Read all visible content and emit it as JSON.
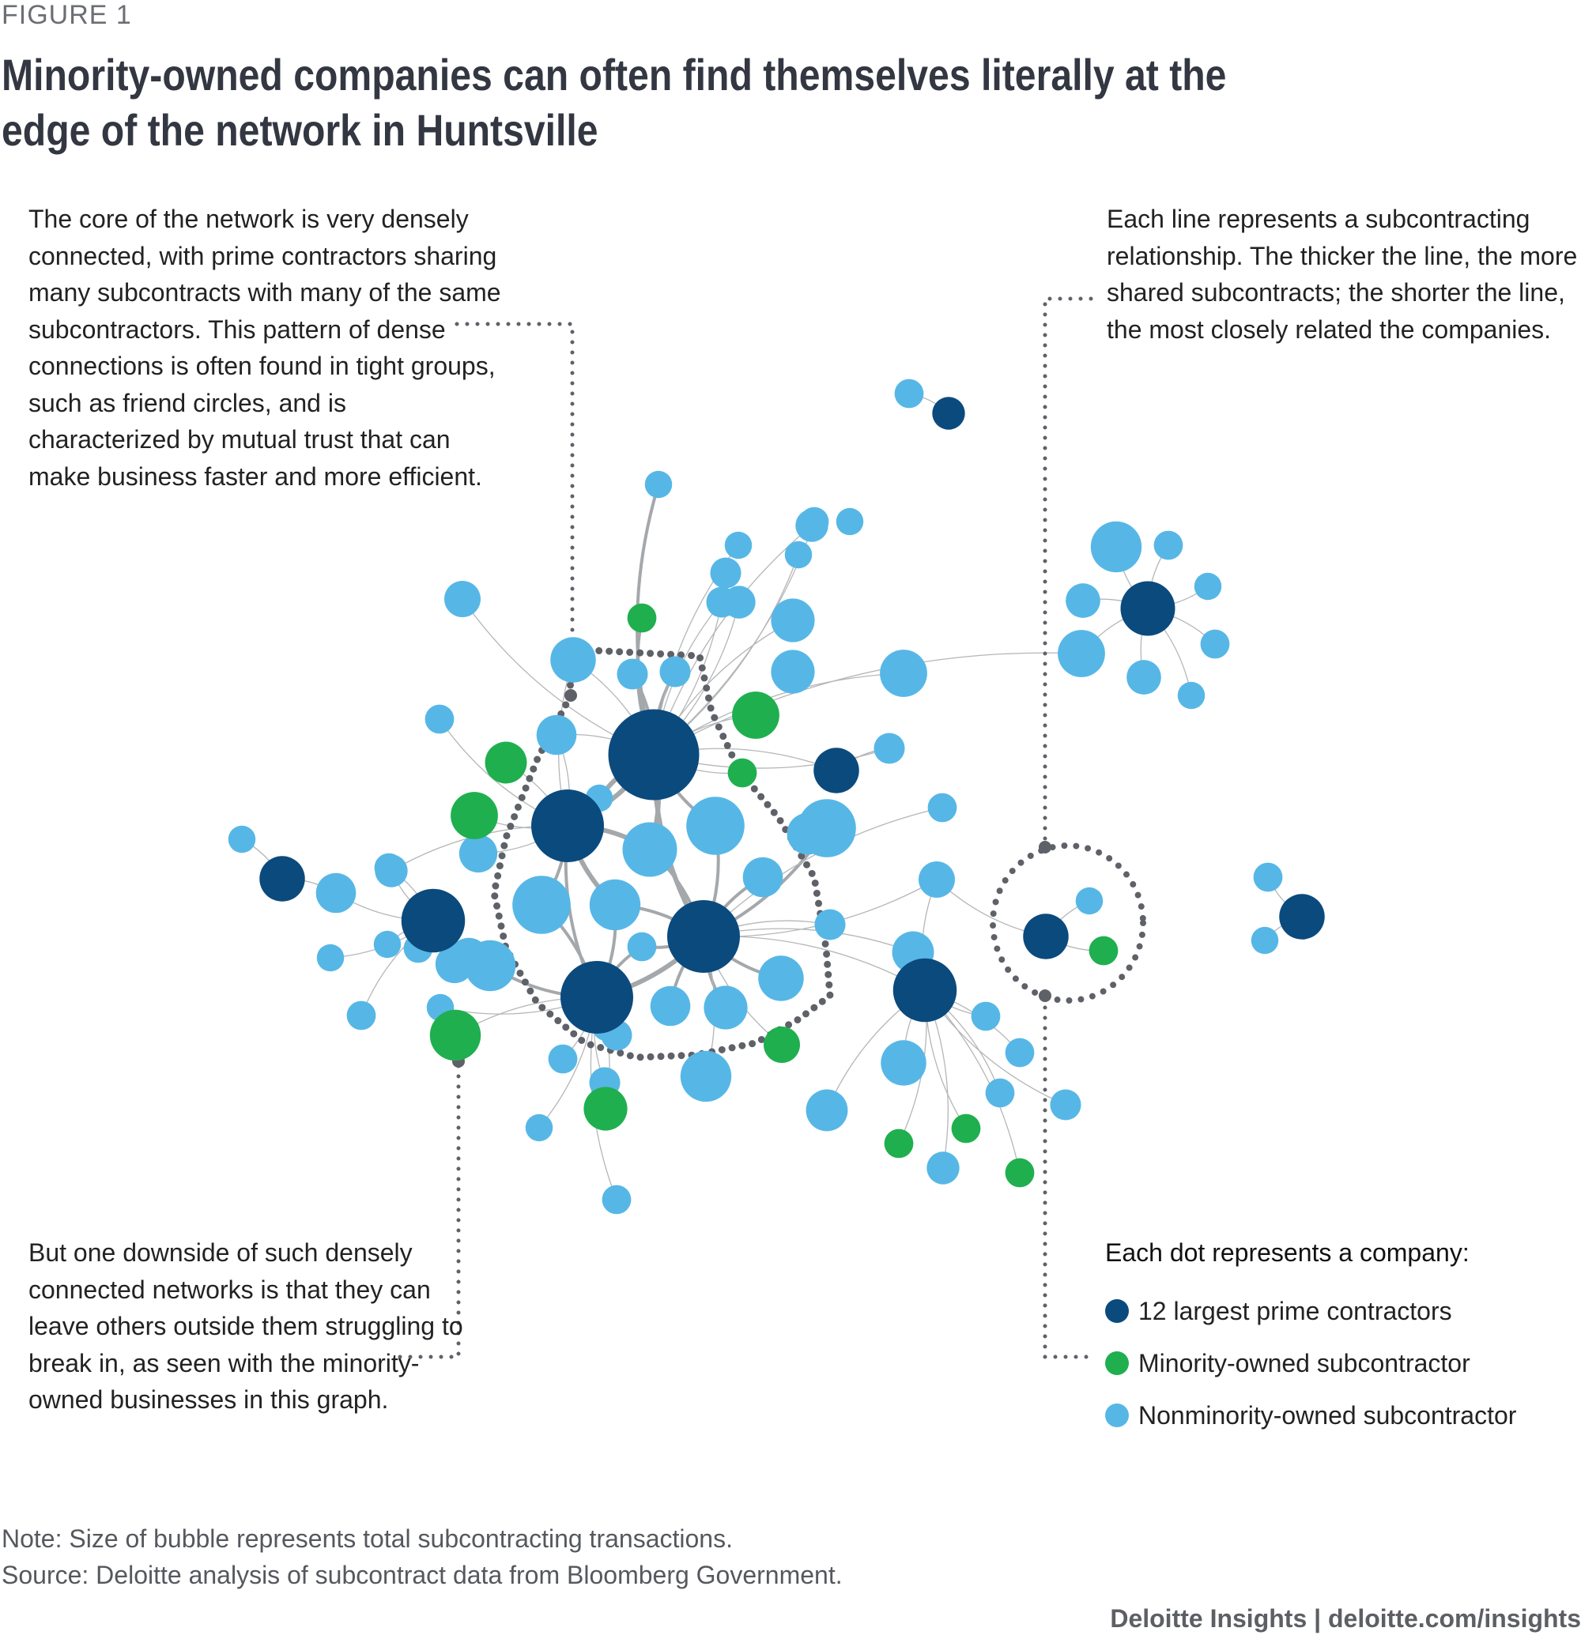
{
  "figure_label": "FIGURE 1",
  "title": "Minority-owned companies can often find themselves literally at the edge of the network in Huntsville",
  "annotations": {
    "core": "The core of the network is very densely connected, with prime contractors sharing many subcontracts with many of the same subcontractors. This pattern of dense connections is often found in tight groups, such as friend circles, and is characterized by mutual trust that can make business faster and more efficient.",
    "lines": "Each line represents a subcontracting relationship. The thicker the line, the more shared subcontracts; the shorter the line, the most closely related the companies.",
    "downside": "But one downside of such densely connected networks is that they can leave others outside them struggling to break in, as seen with the minority-owned businesses in this graph."
  },
  "legend": {
    "title": "Each dot represents a company:",
    "items": [
      {
        "label": "12 largest prime contractors",
        "type": "prime",
        "color": "#0b4a7d"
      },
      {
        "label": "Minority-owned subcontractor",
        "type": "minority",
        "color": "#1faf4f"
      },
      {
        "label": "Nonminority-owned subcontractor",
        "type": "nonminority",
        "color": "#56b7e6"
      }
    ]
  },
  "colors": {
    "prime": "#0b4a7d",
    "minority": "#1faf4f",
    "nonminority": "#56b7e6",
    "edge": "#a5a8ab",
    "callout": "#5f6168"
  },
  "note": "Note: Size of bubble represents total subcontracting transactions.",
  "source": "Source: Deloitte analysis of subcontract data from Bloomberg Government.",
  "footer": "Deloitte Insights | deloitte.com/insights",
  "network": {
    "nodes": [
      {
        "id": "P1",
        "type": "prime",
        "size": 5
      },
      {
        "id": "P2",
        "type": "prime",
        "size": 4
      },
      {
        "id": "P3",
        "type": "prime",
        "size": 4
      },
      {
        "id": "P4",
        "type": "prime",
        "size": 4
      },
      {
        "id": "P5",
        "type": "prime",
        "size": 3.5
      },
      {
        "id": "P6",
        "type": "prime",
        "size": 3.5
      },
      {
        "id": "P7",
        "type": "prime",
        "size": 3
      },
      {
        "id": "P8",
        "type": "prime",
        "size": 2.5
      },
      {
        "id": "P9",
        "type": "prime",
        "size": 2.5
      },
      {
        "id": "P10",
        "type": "prime",
        "size": 2.5
      },
      {
        "id": "P11",
        "type": "prime",
        "size": 1.8
      },
      {
        "id": "P12",
        "type": "prime",
        "size": 2.5
      },
      {
        "id": "S1",
        "type": "nonminority",
        "size": 2
      },
      {
        "id": "S2",
        "type": "nonminority",
        "size": 1.7
      },
      {
        "id": "S3",
        "type": "nonminority",
        "size": 1.5
      },
      {
        "id": "S4",
        "type": "nonminority",
        "size": 1.5
      },
      {
        "id": "S5",
        "type": "nonminority",
        "size": 1.7
      },
      {
        "id": "S6",
        "type": "nonminority",
        "size": 2.4
      },
      {
        "id": "S7",
        "type": "nonminority",
        "size": 1.8
      },
      {
        "id": "S8",
        "type": "nonminority",
        "size": 1.8
      },
      {
        "id": "S9",
        "type": "nonminority",
        "size": 1.6
      },
      {
        "id": "S10",
        "type": "nonminority",
        "size": 1.5
      },
      {
        "id": "S11",
        "type": "nonminority",
        "size": 2.1
      },
      {
        "id": "S12",
        "type": "nonminority",
        "size": 2.2
      },
      {
        "id": "S13",
        "type": "nonminority",
        "size": 2.1
      },
      {
        "id": "S14",
        "type": "nonminority",
        "size": 1.8
      },
      {
        "id": "S15",
        "type": "nonminority",
        "size": 1.5
      },
      {
        "id": "S16",
        "type": "nonminority",
        "size": 3
      },
      {
        "id": "S17",
        "type": "nonminority",
        "size": 3.2
      },
      {
        "id": "S18",
        "type": "nonminority",
        "size": 3.2
      },
      {
        "id": "S19",
        "type": "nonminority",
        "size": 2.8
      },
      {
        "id": "S20",
        "type": "nonminority",
        "size": 2.2
      },
      {
        "id": "S21",
        "type": "nonminority",
        "size": 1.6
      },
      {
        "id": "S22",
        "type": "nonminority",
        "size": 2.8
      },
      {
        "id": "S23",
        "type": "nonminority",
        "size": 2.2
      },
      {
        "id": "S24",
        "type": "nonminority",
        "size": 2.4
      },
      {
        "id": "S25",
        "type": "nonminority",
        "size": 2.8
      },
      {
        "id": "S26",
        "type": "nonminority",
        "size": 2.5
      },
      {
        "id": "S27",
        "type": "nonminority",
        "size": 2.3
      },
      {
        "id": "S28",
        "type": "nonminority",
        "size": 2.6
      },
      {
        "id": "S29",
        "type": "nonminority",
        "size": 1.7
      },
      {
        "id": "S30",
        "type": "nonminority",
        "size": 2
      },
      {
        "id": "S31",
        "type": "nonminority",
        "size": 1.7
      },
      {
        "id": "S32",
        "type": "nonminority",
        "size": 1.6
      },
      {
        "id": "S33",
        "type": "nonminority",
        "size": 2.3
      },
      {
        "id": "S34",
        "type": "nonminority",
        "size": 2.6
      },
      {
        "id": "S35",
        "type": "nonminority",
        "size": 2.8
      },
      {
        "id": "S36",
        "type": "nonminority",
        "size": 1.9
      },
      {
        "id": "S37",
        "type": "nonminority",
        "size": 1.6
      },
      {
        "id": "S38",
        "type": "nonminority",
        "size": 1.5
      },
      {
        "id": "S39",
        "type": "nonminority",
        "size": 1.6
      },
      {
        "id": "S40",
        "type": "nonminority",
        "size": 1.9
      },
      {
        "id": "S41",
        "type": "nonminority",
        "size": 1.5
      },
      {
        "id": "S42",
        "type": "nonminority",
        "size": 1.6
      },
      {
        "id": "S43",
        "type": "nonminority",
        "size": 1.5
      },
      {
        "id": "S44",
        "type": "nonminority",
        "size": 1.6
      },
      {
        "id": "S45",
        "type": "nonminority",
        "size": 2.5
      },
      {
        "id": "S46",
        "type": "nonminority",
        "size": 3.2
      },
      {
        "id": "S47",
        "type": "nonminority",
        "size": 2.4
      },
      {
        "id": "S48",
        "type": "nonminority",
        "size": 1.7
      },
      {
        "id": "S49",
        "type": "nonminority",
        "size": 1.7
      },
      {
        "id": "S50",
        "type": "nonminority",
        "size": 1.7
      },
      {
        "id": "S51",
        "type": "nonminority",
        "size": 1.7
      },
      {
        "id": "S52",
        "type": "nonminority",
        "size": 1.7
      },
      {
        "id": "S53",
        "type": "nonminority",
        "size": 1.6
      },
      {
        "id": "S54",
        "type": "nonminority",
        "size": 1.6
      },
      {
        "id": "S55",
        "type": "nonminority",
        "size": 1.6
      },
      {
        "id": "S56",
        "type": "nonminority",
        "size": 1.6
      },
      {
        "id": "S57",
        "type": "nonminority",
        "size": 2.3
      },
      {
        "id": "S58",
        "type": "nonminority",
        "size": 1.8
      },
      {
        "id": "S59",
        "type": "nonminority",
        "size": 1.7
      },
      {
        "id": "S60",
        "type": "nonminority",
        "size": 1.6
      },
      {
        "id": "S61",
        "type": "nonminority",
        "size": 2.2
      },
      {
        "id": "S62",
        "type": "nonminority",
        "size": 2.5
      },
      {
        "id": "S63",
        "type": "nonminority",
        "size": 2.2
      },
      {
        "id": "S64",
        "type": "nonminority",
        "size": 1.6
      },
      {
        "id": "S65",
        "type": "nonminority",
        "size": 1.6
      },
      {
        "id": "S66",
        "type": "nonminority",
        "size": 1.5
      },
      {
        "id": "S67",
        "type": "nonminority",
        "size": 1.5
      },
      {
        "id": "S68",
        "type": "nonminority",
        "size": 1.6
      },
      {
        "id": "S69",
        "type": "nonminority",
        "size": 1.6
      },
      {
        "id": "S70",
        "type": "nonminority",
        "size": 1.5
      },
      {
        "id": "S71",
        "type": "nonminority",
        "size": 1.5
      },
      {
        "id": "S72",
        "type": "nonminority",
        "size": 1.5
      },
      {
        "id": "S73",
        "type": "nonminority",
        "size": 1.5
      },
      {
        "id": "S74",
        "type": "nonminority",
        "size": 1.5
      },
      {
        "id": "S75",
        "type": "nonminority",
        "size": 1.5
      },
      {
        "id": "S76",
        "type": "nonminority",
        "size": 1.6
      },
      {
        "id": "M1",
        "type": "minority",
        "size": 1.6
      },
      {
        "id": "M2",
        "type": "minority",
        "size": 2.3
      },
      {
        "id": "M3",
        "type": "minority",
        "size": 2.6
      },
      {
        "id": "M4",
        "type": "minority",
        "size": 1.6
      },
      {
        "id": "M5",
        "type": "minority",
        "size": 2.6
      },
      {
        "id": "M6",
        "type": "minority",
        "size": 2.8
      },
      {
        "id": "M7",
        "type": "minority",
        "size": 2.4
      },
      {
        "id": "M8",
        "type": "minority",
        "size": 2
      },
      {
        "id": "M9",
        "type": "minority",
        "size": 1.6
      },
      {
        "id": "M10",
        "type": "minority",
        "size": 1.6
      },
      {
        "id": "M11",
        "type": "minority",
        "size": 1.6
      },
      {
        "id": "M12",
        "type": "minority",
        "size": 1.6
      }
    ]
  }
}
